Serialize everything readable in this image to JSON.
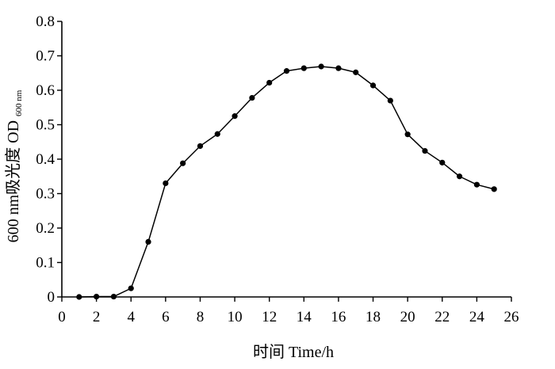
{
  "chart_data": {
    "type": "line",
    "title": "",
    "xlabel": "时间  Time/h",
    "ylabel": {
      "main": "600 nm吸光度  OD",
      "subscript": "600 nm"
    },
    "xlim": [
      0,
      26
    ],
    "ylim": [
      0,
      0.8
    ],
    "x_ticks": [
      "0",
      "2",
      "4",
      "6",
      "8",
      "10",
      "12",
      "14",
      "16",
      "18",
      "20",
      "22",
      "24",
      "26"
    ],
    "y_ticks": [
      "0",
      "0.1",
      "0.2",
      "0.3",
      "0.4",
      "0.5",
      "0.6",
      "0.7",
      "0.8"
    ],
    "grid": false,
    "legend": "none",
    "series": [
      {
        "marker": "circle",
        "color": "#000000",
        "x": [
          1,
          2,
          3,
          4,
          5,
          6,
          7,
          8,
          9,
          10,
          11,
          12,
          13,
          14,
          15,
          16,
          17,
          18,
          19,
          20,
          21,
          22,
          23,
          24,
          25
        ],
        "y": [
          0.0,
          0.001,
          0.001,
          0.025,
          0.16,
          0.33,
          0.388,
          0.438,
          0.473,
          0.525,
          0.578,
          0.622,
          0.656,
          0.664,
          0.669,
          0.664,
          0.652,
          0.614,
          0.57,
          0.472,
          0.424,
          0.39,
          0.35,
          0.326,
          0.313
        ]
      }
    ]
  }
}
